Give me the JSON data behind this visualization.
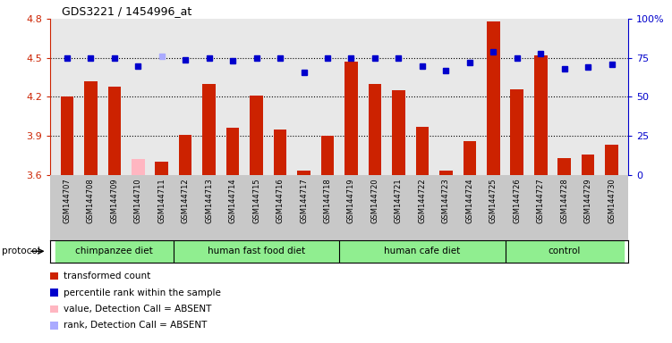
{
  "title": "GDS3221 / 1454996_at",
  "samples": [
    "GSM144707",
    "GSM144708",
    "GSM144709",
    "GSM144710",
    "GSM144711",
    "GSM144712",
    "GSM144713",
    "GSM144714",
    "GSM144715",
    "GSM144716",
    "GSM144717",
    "GSM144718",
    "GSM144719",
    "GSM144720",
    "GSM144721",
    "GSM144722",
    "GSM144723",
    "GSM144724",
    "GSM144725",
    "GSM144726",
    "GSM144727",
    "GSM144728",
    "GSM144729",
    "GSM144730"
  ],
  "bar_values": [
    4.2,
    4.32,
    4.28,
    3.72,
    3.7,
    3.91,
    4.3,
    3.96,
    4.21,
    3.95,
    3.63,
    3.9,
    4.47,
    4.3,
    4.25,
    3.97,
    3.63,
    3.86,
    4.78,
    4.26,
    4.52,
    3.73,
    3.76,
    3.83
  ],
  "absent_bar_indices": [
    3
  ],
  "dot_values": [
    75,
    75,
    75,
    70,
    76,
    74,
    75,
    73,
    75,
    75,
    66,
    75,
    75,
    75,
    75,
    70,
    67,
    72,
    79,
    75,
    78,
    68,
    69,
    71
  ],
  "absent_dot_indices": [
    4
  ],
  "ylim_left": [
    3.6,
    4.8
  ],
  "ylim_right": [
    0,
    100
  ],
  "yticks_left": [
    3.6,
    3.9,
    4.2,
    4.5,
    4.8
  ],
  "yticks_right": [
    0,
    25,
    50,
    75,
    100
  ],
  "hlines": [
    3.9,
    4.2,
    4.5
  ],
  "groups": [
    {
      "label": "chimpanzee diet",
      "start": 0,
      "end": 4
    },
    {
      "label": "human fast food diet",
      "start": 5,
      "end": 11
    },
    {
      "label": "human cafe diet",
      "start": 12,
      "end": 18
    },
    {
      "label": "control",
      "start": 19,
      "end": 23
    }
  ],
  "group_boundaries": [
    0,
    5,
    12,
    19,
    24
  ],
  "bar_color": "#CC2200",
  "absent_bar_color": "#FFB6C1",
  "dot_color": "#0000CC",
  "absent_dot_color": "#AAAAFF",
  "plot_bg_color": "#E8E8E8",
  "tick_area_bg": "#C8C8C8",
  "proto_bg": "#90EE90",
  "legend_items": [
    {
      "label": "transformed count",
      "color": "#CC2200"
    },
    {
      "label": "percentile rank within the sample",
      "color": "#0000CC"
    },
    {
      "label": "value, Detection Call = ABSENT",
      "color": "#FFB6C1"
    },
    {
      "label": "rank, Detection Call = ABSENT",
      "color": "#AAAAFF"
    }
  ]
}
